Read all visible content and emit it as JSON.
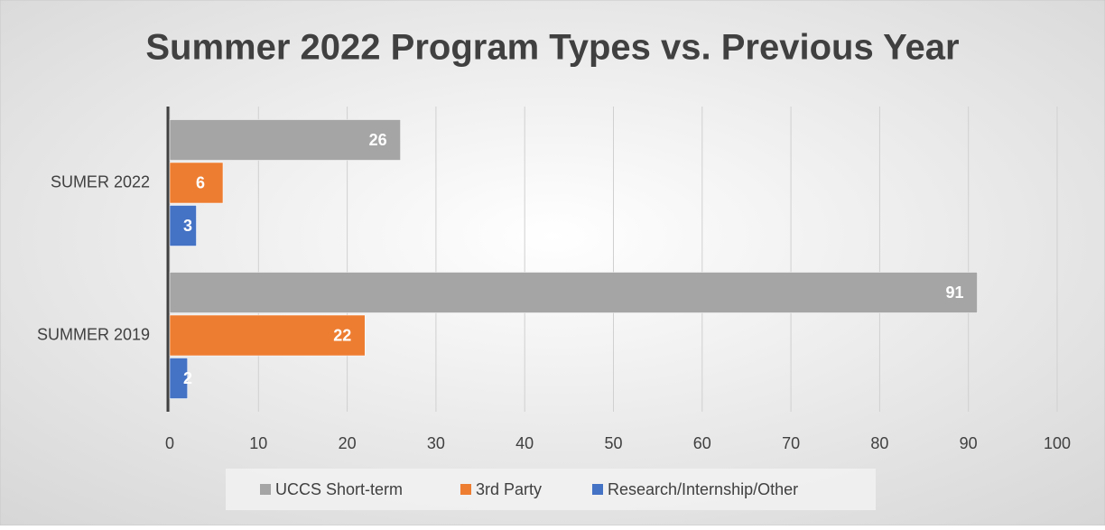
{
  "chart_data": {
    "type": "bar",
    "orientation": "horizontal",
    "title": "Summer 2022 Program Types vs. Previous Year",
    "categories": [
      "SUMER 2022",
      "SUMMER 2019"
    ],
    "series": [
      {
        "name": "UCCS Short-term",
        "color": "#a5a5a5",
        "values": [
          26,
          91
        ]
      },
      {
        "name": "3rd Party",
        "color": "#ed7d31",
        "values": [
          6,
          22
        ]
      },
      {
        "name": "Research/Internship/Other",
        "color": "#4472c4",
        "values": [
          3,
          2
        ]
      }
    ],
    "xlim": [
      0,
      100
    ],
    "xticks": [
      0,
      10,
      20,
      30,
      40,
      50,
      60,
      70,
      80,
      90,
      100
    ],
    "grid": true,
    "legend": "bottom"
  }
}
